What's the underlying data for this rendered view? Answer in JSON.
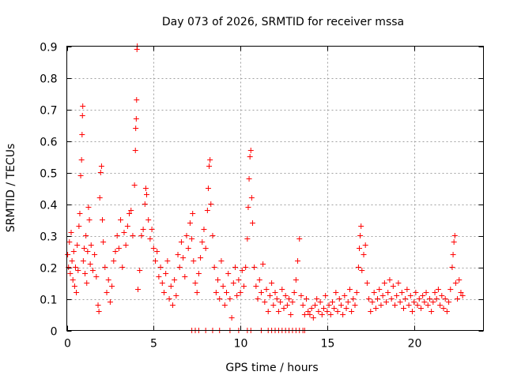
{
  "chart_data": {
    "type": "scatter",
    "title": "Day 073 of 2026, SRMTID for receiver mssa",
    "xlabel": "GPS time / hours",
    "ylabel": "SRMTID / TECUs",
    "xlim": [
      0,
      24
    ],
    "ylim": [
      0,
      0.9
    ],
    "xticks": [
      0,
      5,
      10,
      15,
      20
    ],
    "yticks": [
      0,
      0.1,
      0.2,
      0.3,
      0.4,
      0.5,
      0.6,
      0.7,
      0.8,
      0.9
    ],
    "xtick_labels": [
      "0",
      "5",
      "10",
      "15",
      "20"
    ],
    "ytick_labels": [
      "0",
      "0.1",
      "0.2",
      "0.3",
      "0.4",
      "0.5",
      "0.6",
      "0.7",
      "0.8",
      "0.9"
    ],
    "grid": true,
    "marker": "+",
    "color": "#ff0000",
    "data_extent_hours": [
      0,
      22.8
    ],
    "series": [
      {
        "name": "mssa",
        "points": [
          [
            0.05,
            0.24
          ],
          [
            0.1,
            0.2
          ],
          [
            0.15,
            0.28
          ],
          [
            0.2,
            0.18
          ],
          [
            0.25,
            0.31
          ],
          [
            0.3,
            0.22
          ],
          [
            0.35,
            0.16
          ],
          [
            0.4,
            0.25
          ],
          [
            0.45,
            0.14
          ],
          [
            0.5,
            0.2
          ],
          [
            0.55,
            0.12
          ],
          [
            0.6,
            0.27
          ],
          [
            0.65,
            0.19
          ],
          [
            0.7,
            0.33
          ],
          [
            0.75,
            0.37
          ],
          [
            0.8,
            0.49
          ],
          [
            0.85,
            0.54
          ],
          [
            0.88,
            0.62
          ],
          [
            0.9,
            0.68
          ],
          [
            0.92,
            0.71
          ],
          [
            0.95,
            0.22
          ],
          [
            1.0,
            0.26
          ],
          [
            1.05,
            0.18
          ],
          [
            1.1,
            0.3
          ],
          [
            1.15,
            0.15
          ],
          [
            1.2,
            0.25
          ],
          [
            1.25,
            0.39
          ],
          [
            1.3,
            0.35
          ],
          [
            1.35,
            0.21
          ],
          [
            1.4,
            0.27
          ],
          [
            1.5,
            0.19
          ],
          [
            1.6,
            0.24
          ],
          [
            1.7,
            0.17
          ],
          [
            1.8,
            0.08
          ],
          [
            1.85,
            0.06
          ],
          [
            1.9,
            0.42
          ],
          [
            1.95,
            0.5
          ],
          [
            2.0,
            0.52
          ],
          [
            2.05,
            0.35
          ],
          [
            2.1,
            0.28
          ],
          [
            2.2,
            0.2
          ],
          [
            2.3,
            0.12
          ],
          [
            2.4,
            0.16
          ],
          [
            2.5,
            0.09
          ],
          [
            2.6,
            0.14
          ],
          [
            2.7,
            0.22
          ],
          [
            2.8,
            0.25
          ],
          [
            2.9,
            0.3
          ],
          [
            3.0,
            0.26
          ],
          [
            3.1,
            0.35
          ],
          [
            3.2,
            0.2
          ],
          [
            3.3,
            0.31
          ],
          [
            3.4,
            0.27
          ],
          [
            3.5,
            0.33
          ],
          [
            3.6,
            0.37
          ],
          [
            3.7,
            0.38
          ],
          [
            3.8,
            0.3
          ],
          [
            3.9,
            0.46
          ],
          [
            3.95,
            0.57
          ],
          [
            3.97,
            0.64
          ],
          [
            4.0,
            0.67
          ],
          [
            4.02,
            0.73
          ],
          [
            4.04,
            0.89
          ],
          [
            4.06,
            0.9
          ],
          [
            4.1,
            0.13
          ],
          [
            4.2,
            0.19
          ],
          [
            4.3,
            0.3
          ],
          [
            4.4,
            0.32
          ],
          [
            4.5,
            0.4
          ],
          [
            4.55,
            0.45
          ],
          [
            4.6,
            0.43
          ],
          [
            4.7,
            0.35
          ],
          [
            4.8,
            0.29
          ],
          [
            4.9,
            0.32
          ],
          [
            5.0,
            0.26
          ],
          [
            5.1,
            0.22
          ],
          [
            5.2,
            0.25
          ],
          [
            5.3,
            0.17
          ],
          [
            5.4,
            0.2
          ],
          [
            5.5,
            0.15
          ],
          [
            5.6,
            0.12
          ],
          [
            5.7,
            0.18
          ],
          [
            5.8,
            0.22
          ],
          [
            5.9,
            0.1
          ],
          [
            6.0,
            0.14
          ],
          [
            6.1,
            0.08
          ],
          [
            6.2,
            0.16
          ],
          [
            6.3,
            0.11
          ],
          [
            6.4,
            0.24
          ],
          [
            6.5,
            0.2
          ],
          [
            6.6,
            0.28
          ],
          [
            6.7,
            0.23
          ],
          [
            6.8,
            0.17
          ],
          [
            6.9,
            0.3
          ],
          [
            7.0,
            0.26
          ],
          [
            7.1,
            0.34
          ],
          [
            7.2,
            0.29
          ],
          [
            7.25,
            0.37
          ],
          [
            7.3,
            0.22
          ],
          [
            7.4,
            0.15
          ],
          [
            7.5,
            0.12
          ],
          [
            7.6,
            0.18
          ],
          [
            7.7,
            0.23
          ],
          [
            7.8,
            0.28
          ],
          [
            7.9,
            0.32
          ],
          [
            8.0,
            0.26
          ],
          [
            8.1,
            0.38
          ],
          [
            8.15,
            0.45
          ],
          [
            8.2,
            0.52
          ],
          [
            8.25,
            0.54
          ],
          [
            8.3,
            0.4
          ],
          [
            8.4,
            0.3
          ],
          [
            8.5,
            0.2
          ],
          [
            8.6,
            0.12
          ],
          [
            8.7,
            0.16
          ],
          [
            8.8,
            0.1
          ],
          [
            8.9,
            0.22
          ],
          [
            9.0,
            0.14
          ],
          [
            9.1,
            0.08
          ],
          [
            9.2,
            0.12
          ],
          [
            9.3,
            0.18
          ],
          [
            9.4,
            0.1
          ],
          [
            9.5,
            0.04
          ],
          [
            9.6,
            0.15
          ],
          [
            9.7,
            0.2
          ],
          [
            9.8,
            0.11
          ],
          [
            9.9,
            0.16
          ],
          [
            10.0,
            0.12
          ],
          [
            10.1,
            0.19
          ],
          [
            10.2,
            0.14
          ],
          [
            10.3,
            0.2
          ],
          [
            10.4,
            0.29
          ],
          [
            10.45,
            0.39
          ],
          [
            10.5,
            0.48
          ],
          [
            10.55,
            0.55
          ],
          [
            10.6,
            0.57
          ],
          [
            10.65,
            0.42
          ],
          [
            10.7,
            0.34
          ],
          [
            10.8,
            0.2
          ],
          [
            10.9,
            0.14
          ],
          [
            11.0,
            0.1
          ],
          [
            11.1,
            0.16
          ],
          [
            11.2,
            0.12
          ],
          [
            11.3,
            0.21
          ],
          [
            11.4,
            0.09
          ],
          [
            11.5,
            0.13
          ],
          [
            11.6,
            0.06
          ],
          [
            11.7,
            0.11
          ],
          [
            11.8,
            0.15
          ],
          [
            11.9,
            0.08
          ],
          [
            12.0,
            0.12
          ],
          [
            12.1,
            0.1
          ],
          [
            12.2,
            0.06
          ],
          [
            12.3,
            0.09
          ],
          [
            12.4,
            0.13
          ],
          [
            12.5,
            0.07
          ],
          [
            12.6,
            0.11
          ],
          [
            12.7,
            0.08
          ],
          [
            12.8,
            0.1
          ],
          [
            12.9,
            0.05
          ],
          [
            13.0,
            0.09
          ],
          [
            13.1,
            0.12
          ],
          [
            13.2,
            0.16
          ],
          [
            13.3,
            0.22
          ],
          [
            13.4,
            0.29
          ],
          [
            13.5,
            0.11
          ],
          [
            13.6,
            0.08
          ],
          [
            13.7,
            0.05
          ],
          [
            13.8,
            0.1
          ],
          [
            13.9,
            0.06
          ],
          [
            14.0,
            0.05
          ],
          [
            14.1,
            0.07
          ],
          [
            14.2,
            0.04
          ],
          [
            14.3,
            0.08
          ],
          [
            14.4,
            0.1
          ],
          [
            14.5,
            0.06
          ],
          [
            14.6,
            0.09
          ],
          [
            14.7,
            0.05
          ],
          [
            14.8,
            0.07
          ],
          [
            14.9,
            0.11
          ],
          [
            15.0,
            0.06
          ],
          [
            15.1,
            0.08
          ],
          [
            15.2,
            0.05
          ],
          [
            15.3,
            0.09
          ],
          [
            15.4,
            0.07
          ],
          [
            15.5,
            0.12
          ],
          [
            15.6,
            0.06
          ],
          [
            15.7,
            0.1
          ],
          [
            15.8,
            0.08
          ],
          [
            15.9,
            0.05
          ],
          [
            16.0,
            0.11
          ],
          [
            16.1,
            0.07
          ],
          [
            16.2,
            0.09
          ],
          [
            16.3,
            0.13
          ],
          [
            16.4,
            0.06
          ],
          [
            16.5,
            0.1
          ],
          [
            16.6,
            0.08
          ],
          [
            16.7,
            0.12
          ],
          [
            16.8,
            0.2
          ],
          [
            16.85,
            0.26
          ],
          [
            16.9,
            0.3
          ],
          [
            16.95,
            0.33
          ],
          [
            17.0,
            0.19
          ],
          [
            17.1,
            0.24
          ],
          [
            17.2,
            0.27
          ],
          [
            17.3,
            0.15
          ],
          [
            17.4,
            0.1
          ],
          [
            17.5,
            0.06
          ],
          [
            17.6,
            0.09
          ],
          [
            17.7,
            0.12
          ],
          [
            17.8,
            0.07
          ],
          [
            17.9,
            0.1
          ],
          [
            18.0,
            0.13
          ],
          [
            18.1,
            0.08
          ],
          [
            18.2,
            0.11
          ],
          [
            18.3,
            0.15
          ],
          [
            18.4,
            0.09
          ],
          [
            18.5,
            0.12
          ],
          [
            18.6,
            0.16
          ],
          [
            18.7,
            0.1
          ],
          [
            18.8,
            0.14
          ],
          [
            18.9,
            0.08
          ],
          [
            19.0,
            0.11
          ],
          [
            19.1,
            0.15
          ],
          [
            19.2,
            0.09
          ],
          [
            19.3,
            0.12
          ],
          [
            19.4,
            0.07
          ],
          [
            19.5,
            0.1
          ],
          [
            19.6,
            0.13
          ],
          [
            19.7,
            0.08
          ],
          [
            19.8,
            0.11
          ],
          [
            19.9,
            0.06
          ],
          [
            20.0,
            0.09
          ],
          [
            20.1,
            0.12
          ],
          [
            20.2,
            0.08
          ],
          [
            20.3,
            0.1
          ],
          [
            20.4,
            0.07
          ],
          [
            20.5,
            0.11
          ],
          [
            20.6,
            0.09
          ],
          [
            20.7,
            0.12
          ],
          [
            20.8,
            0.08
          ],
          [
            20.9,
            0.1
          ],
          [
            21.0,
            0.06
          ],
          [
            21.1,
            0.09
          ],
          [
            21.2,
            0.12
          ],
          [
            21.3,
            0.1
          ],
          [
            21.4,
            0.13
          ],
          [
            21.5,
            0.08
          ],
          [
            21.6,
            0.11
          ],
          [
            21.7,
            0.07
          ],
          [
            21.8,
            0.1
          ],
          [
            21.9,
            0.06
          ],
          [
            22.0,
            0.09
          ],
          [
            22.1,
            0.13
          ],
          [
            22.2,
            0.2
          ],
          [
            22.25,
            0.24
          ],
          [
            22.3,
            0.28
          ],
          [
            22.35,
            0.3
          ],
          [
            22.4,
            0.15
          ],
          [
            22.5,
            0.1
          ],
          [
            22.6,
            0.16
          ],
          [
            22.7,
            0.12
          ],
          [
            22.8,
            0.11
          ]
        ],
        "zero_points": [
          7.2,
          7.4,
          7.6,
          8.0,
          8.4,
          8.8,
          9.4,
          9.9,
          10.4,
          10.6,
          11.2,
          11.6,
          11.8,
          12.0,
          12.2,
          12.4,
          12.6,
          12.8,
          13.0,
          13.2,
          13.4,
          13.6,
          13.7
        ]
      }
    ]
  }
}
